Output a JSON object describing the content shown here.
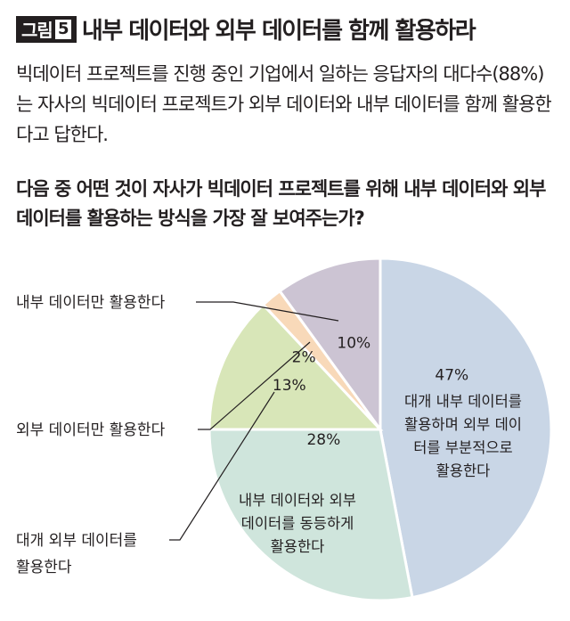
{
  "header": {
    "badge_label": "그림",
    "badge_number": "5",
    "title": "내부 데이터와 외부 데이터를 함께 활용하라"
  },
  "description": "빅데이터 프로젝트를 진행 중인 기업에서 일하는 응답자의 대다수(88%)는 자사의 빅데이터 프로젝트가 외부 데이터와 내부 데이터를 함께 활용한다고 답한다.",
  "chart_data": {
    "type": "pie",
    "title": "다음 중 어떤 것이 자사가 빅데이터 프로젝트를 위해 내부 데이터와 외부 데이터를 활용하는 방식을 가장 잘 보여주는가?",
    "slices": [
      {
        "label": "대개 내부 데이터를 활용하며 외부 데이터를 부분적으로 활용한다",
        "value": 47,
        "value_label": "47%",
        "color": "#c9d6e6"
      },
      {
        "label": "내부 데이터와 외부 데이터를 동등하게 활용한다",
        "value": 28,
        "value_label": "28%",
        "color": "#cfe5dc"
      },
      {
        "label": "대개 외부 데이터를 활용한다",
        "value": 13,
        "value_label": "13%",
        "color": "#d8e6b8"
      },
      {
        "label": "외부 데이터만 활용한다",
        "value": 2,
        "value_label": "2%",
        "color": "#f8d9b9"
      },
      {
        "label": "내부 데이터만 활용한다",
        "value": 10,
        "value_label": "10%",
        "color": "#ccc4d3"
      }
    ],
    "inner_labels": {
      "s47": [
        "대개 내부 데이터를",
        "활용하며 외부 데이",
        "터를 부분적으로",
        "활용한다"
      ],
      "s28": [
        "내부 데이터와 외부",
        "데이터를 동등하게",
        "활용한다"
      ]
    },
    "outer_labels": {
      "internal_only": "내부 데이터만 활용한다",
      "external_only": "외부 데이터만 활용한다",
      "mostly_external": [
        "대개 외부 데이터를",
        "활용한다"
      ]
    }
  }
}
